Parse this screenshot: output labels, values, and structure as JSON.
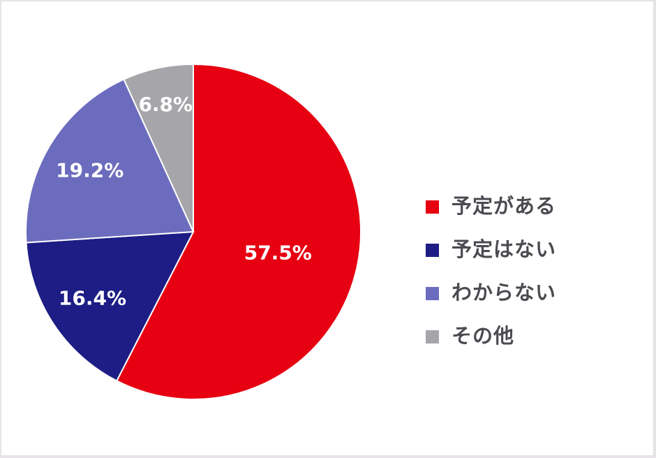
{
  "chart_data": {
    "type": "pie",
    "title": "",
    "categories": [
      "予定がある",
      "予定はない",
      "わからない",
      "その他"
    ],
    "values": [
      57.5,
      16.4,
      19.2,
      6.8
    ],
    "labels": [
      "57.5%",
      "16.4%",
      "19.2%",
      "6.8%"
    ],
    "colors": [
      "#e60012",
      "#1d1d85",
      "#6c6cbe",
      "#a6a6aa"
    ],
    "start_angle_deg": 0,
    "direction": "clockwise",
    "legend_position": "right"
  },
  "legend": {
    "items": [
      {
        "label": "予定がある",
        "color": "#e60012"
      },
      {
        "label": "予定はない",
        "color": "#1d1d85"
      },
      {
        "label": "わからない",
        "color": "#6c6cbe"
      },
      {
        "label": "その他",
        "color": "#a6a6aa"
      }
    ]
  }
}
